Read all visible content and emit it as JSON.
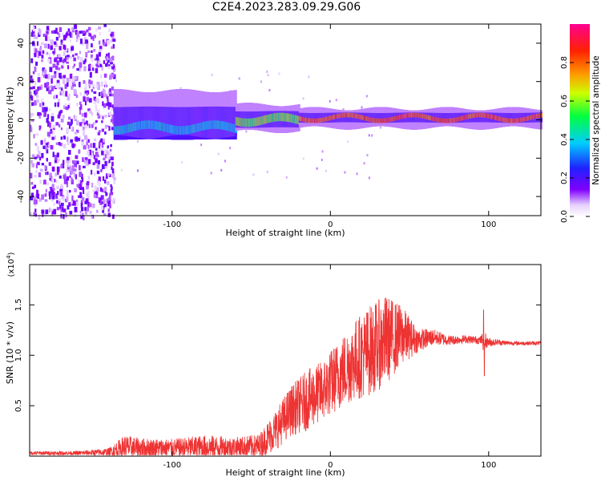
{
  "figure_title": "C2E4.2023.283.09.29.G06",
  "colors": {
    "series": "#ee3333",
    "axis": "#000000",
    "background": "#ffffff"
  },
  "chart_data": [
    {
      "type": "heatmap",
      "title": "C2E4.2023.283.09.29.G06",
      "xlabel": "Height of straight line (km)",
      "ylabel": "Frequency (Hz)",
      "xlim": [
        -190,
        133
      ],
      "ylim": [
        -50,
        50
      ],
      "xticks": [
        -100,
        0,
        100
      ],
      "yticks": [
        -40,
        -20,
        0,
        20,
        40
      ],
      "colorbar": {
        "label": "Normalized spectral amplitude",
        "range": [
          0,
          1
        ],
        "ticks": [
          0.0,
          0.2,
          0.4,
          0.6,
          0.8
        ],
        "colormap": "rainbow (white-violet-blue-cyan-green-yellow-orange-red-magenta)"
      },
      "features": [
        {
          "x_range": [
            -190,
            -137
          ],
          "frequency_spread_hz": [
            -50,
            50
          ],
          "amplitude": "low (0.1-0.3), scattered noise"
        },
        {
          "x_range": [
            -137,
            -60
          ],
          "frequency_center_hz": -4,
          "frequency_spread_hz": [
            -12,
            8
          ],
          "amplitude": "0.3-0.5"
        },
        {
          "x_range": [
            -60,
            -20
          ],
          "frequency_center_hz": 0,
          "frequency_spread_hz": [
            -5,
            5
          ],
          "amplitude": "0.5-0.7"
        },
        {
          "x_range": [
            -20,
            133
          ],
          "frequency_center_hz": 1,
          "frequency_spread_hz": [
            -2,
            4
          ],
          "amplitude": "0.8-1.0"
        }
      ]
    },
    {
      "type": "line",
      "xlabel": "Height of straight line (km)",
      "ylabel": "SNR (10 * v/v)",
      "y_multiplier": "(x10",
      "y_multiplier_exp": "4",
      "y_multiplier_close": ")",
      "xlim": [
        -190,
        133
      ],
      "ylim": [
        0,
        1.9
      ],
      "xticks": [
        -100,
        0,
        100
      ],
      "yticks": [
        0.5,
        1.0,
        1.5
      ],
      "series": [
        {
          "name": "SNR",
          "envelope_x": [
            -190,
            -160,
            -140,
            -130,
            -120,
            -100,
            -80,
            -60,
            -45,
            -35,
            -25,
            -15,
            -5,
            5,
            15,
            25,
            35,
            45,
            55,
            65,
            75,
            85,
            95,
            97,
            99,
            105,
            115,
            125,
            133
          ],
          "envelope_mean": [
            0.03,
            0.03,
            0.04,
            0.09,
            0.08,
            0.08,
            0.09,
            0.09,
            0.1,
            0.25,
            0.45,
            0.55,
            0.65,
            0.8,
            0.95,
            1.05,
            1.15,
            1.2,
            1.15,
            1.18,
            1.15,
            1.16,
            1.15,
            1.15,
            1.13,
            1.13,
            1.12,
            1.12,
            1.12
          ],
          "envelope_amplitude": [
            0.02,
            0.02,
            0.04,
            0.12,
            0.1,
            0.09,
            0.12,
            0.1,
            0.12,
            0.2,
            0.25,
            0.3,
            0.3,
            0.35,
            0.4,
            0.45,
            0.45,
            0.3,
            0.12,
            0.08,
            0.05,
            0.04,
            0.04,
            0.12,
            0.05,
            0.03,
            0.02,
            0.02,
            0.02
          ]
        }
      ]
    }
  ]
}
